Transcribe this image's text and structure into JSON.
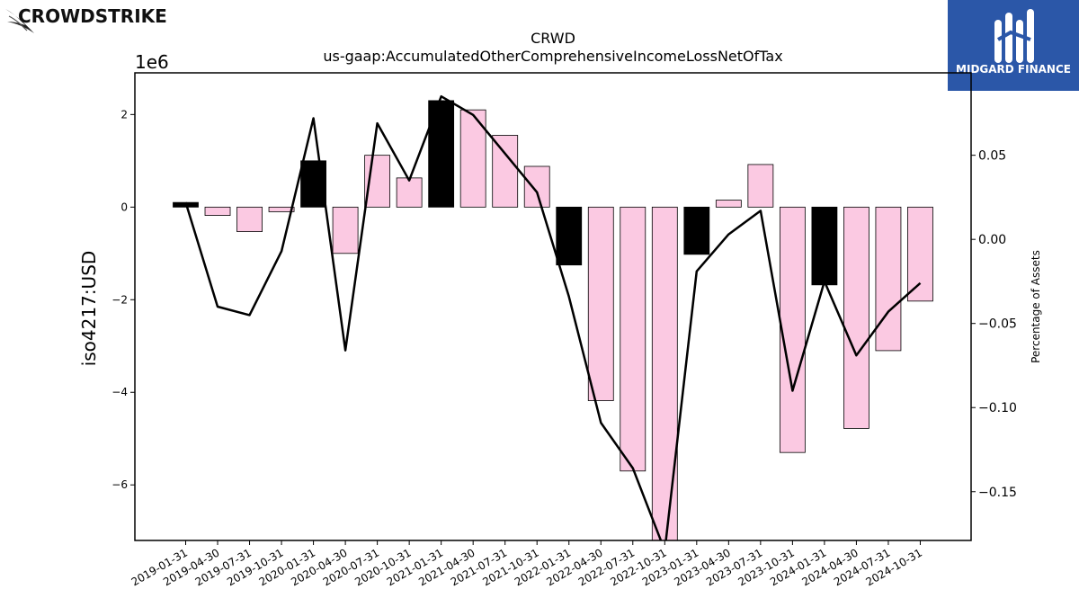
{
  "brand_left": {
    "name": "CROWDSTRIKE"
  },
  "brand_right": {
    "name": "MIDGARD FINANCE"
  },
  "colors": {
    "bar_positive": "#000000",
    "bar_highlight": "#000000",
    "bar_default": "#fbc9e2",
    "line": "#000000",
    "logo_bg": "#2b57a8"
  },
  "chart_data": {
    "type": "bar",
    "title": "CRWD",
    "subtitle": "us-gaap:AccumulatedOtherComprehensiveIncomeLossNetOfTax",
    "ylabel": "iso4217:USD",
    "y_offset_label": "1e6",
    "ylabel_right": "Percentage of Assets",
    "categories": [
      "2019-01-31",
      "2019-04-30",
      "2019-07-31",
      "2019-10-31",
      "2020-01-31",
      "2020-04-30",
      "2020-07-31",
      "2020-10-31",
      "2021-01-31",
      "2021-04-30",
      "2021-07-31",
      "2021-10-31",
      "2022-01-31",
      "2022-04-30",
      "2022-07-31",
      "2022-10-31",
      "2023-01-31",
      "2023-04-30",
      "2023-07-31",
      "2023-10-31",
      "2024-01-31",
      "2024-04-30",
      "2024-07-31",
      "2024-10-31"
    ],
    "series": [
      {
        "values": [
          0.1,
          -0.18,
          -0.53,
          -0.1,
          1.0,
          -1.0,
          1.12,
          0.63,
          2.3,
          2.1,
          1.55,
          0.88,
          -1.25,
          -4.18,
          -5.7,
          -7.4,
          -1.02,
          0.15,
          0.92,
          -5.3,
          -1.68,
          -4.78,
          -3.1,
          -2.03
        ],
        "highlight": [
          true,
          false,
          false,
          false,
          true,
          false,
          false,
          false,
          true,
          false,
          false,
          false,
          true,
          false,
          false,
          false,
          true,
          false,
          false,
          false,
          true,
          false,
          false,
          false
        ]
      },
      {
        "type": "line",
        "values": [
          0.022,
          -0.04,
          -0.045,
          -0.007,
          0.072,
          -0.066,
          0.069,
          0.035,
          0.085,
          0.074,
          0.051,
          0.028,
          -0.034,
          -0.109,
          -0.136,
          -0.185,
          -0.019,
          0.003,
          0.017,
          -0.09,
          -0.025,
          -0.069,
          -0.043,
          -0.026
        ]
      }
    ],
    "ylim": [
      -7.2,
      2.9
    ],
    "yticks": [
      2,
      0,
      -2,
      -4,
      -6
    ],
    "yticklabels": [
      "2",
      "0",
      "−2",
      "−4",
      "−6"
    ],
    "ylim_right": [
      -0.179,
      0.099
    ],
    "yticks_right": [
      0.05,
      0.0,
      -0.05,
      -0.1,
      -0.15
    ],
    "yticklabels_right": [
      "0.05",
      "0.00",
      "−0.05",
      "−0.10",
      "−0.15"
    ],
    "grid": false,
    "legend": "none"
  }
}
